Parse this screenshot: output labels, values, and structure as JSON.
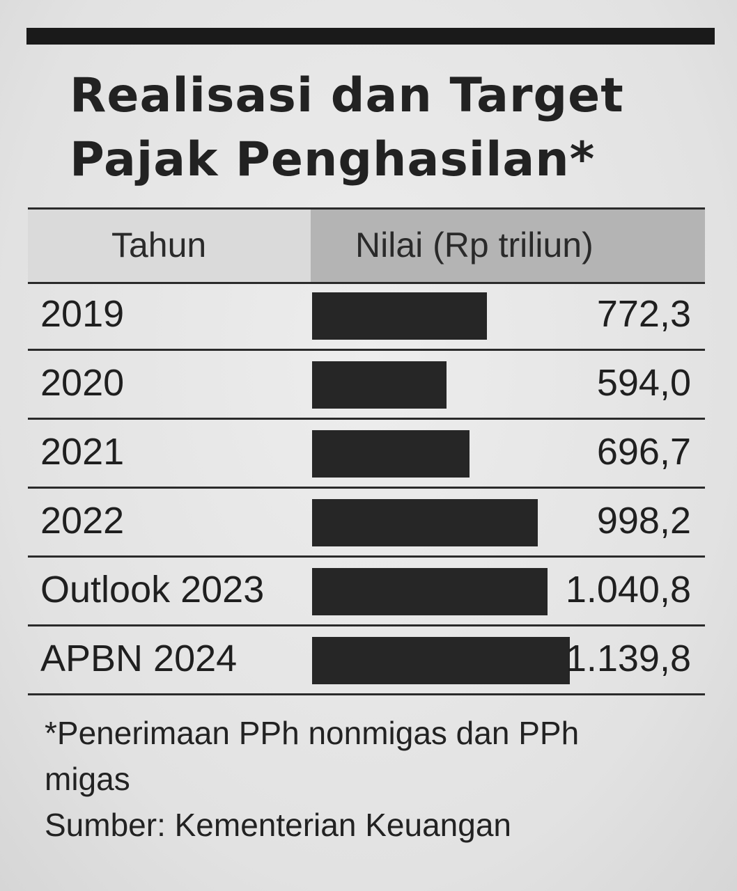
{
  "chart_data": {
    "type": "bar",
    "title": "Realisasi dan Target Pajak Penghasilan*",
    "title_lines": [
      "Realisasi dan Target",
      "Pajak Penghasilan*"
    ],
    "column_headers": {
      "category": "Tahun",
      "value": "Nilai (Rp triliun)"
    },
    "categories": [
      "2019",
      "2020",
      "2021",
      "2022",
      "Outlook 2023",
      "APBN 2024"
    ],
    "values": [
      772.3,
      594.0,
      696.7,
      998.2,
      1040.8,
      1139.8
    ],
    "value_labels": [
      "772,3",
      "594,0",
      "696,7",
      "998,2",
      "1.040,8",
      "1.139,8"
    ],
    "xlim": [
      0,
      1139.8
    ],
    "orientation": "horizontal",
    "bar_color": "#262626"
  },
  "footnote": "*Penerimaan PPh nonmigas dan PPh migas",
  "source": "Sumber: Kementerian Keuangan"
}
